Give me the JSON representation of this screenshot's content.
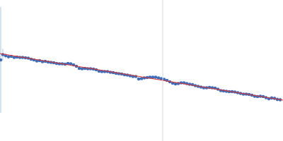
{
  "chart_data": {
    "type": "scatter",
    "tick_labels": false,
    "grid": false,
    "xlim": [
      0,
      400
    ],
    "ylim": [
      0,
      200
    ],
    "xticks": [],
    "yticks": [],
    "reference_lines_x": [
      230
    ],
    "series": [
      {
        "type": "scatter",
        "color": "#3d6cb9",
        "marker": "circle",
        "x": [
          1,
          4,
          8,
          12,
          16,
          20,
          24,
          28,
          32,
          36,
          40,
          44,
          48,
          52,
          56,
          60,
          64,
          68,
          72,
          76,
          80,
          84,
          88,
          92,
          96,
          100,
          104,
          108,
          112,
          116,
          120,
          124,
          128,
          132,
          136,
          140,
          144,
          148,
          152,
          156,
          160,
          164,
          168,
          172,
          176,
          180,
          184,
          188,
          192,
          196,
          200,
          204,
          208,
          212,
          216,
          220,
          224,
          228,
          232,
          236,
          240,
          244,
          248,
          252,
          256,
          260,
          264,
          268,
          272,
          276,
          280,
          284,
          288,
          292,
          296,
          300,
          304,
          308,
          312,
          316,
          320,
          324,
          328,
          332,
          336,
          340,
          344,
          348,
          352,
          356,
          360,
          364,
          368,
          372,
          376,
          380,
          384,
          388,
          392,
          396
        ],
        "values": [
          115,
          122.5,
          121,
          119.5,
          120,
          118.5,
          119,
          118.5,
          118.5,
          118,
          117.5,
          116,
          115,
          113.5,
          114,
          112.5,
          113,
          112,
          111.5,
          111,
          110,
          109.5,
          109.5,
          109,
          110,
          109.5,
          108,
          106,
          103,
          102.5,
          103,
          102.5,
          102.5,
          102,
          101,
          99,
          98.5,
          98.5,
          98.5,
          97.5,
          97,
          96,
          95.5,
          95,
          94,
          93.5,
          92.5,
          91.5,
          91.5,
          88,
          88.5,
          89.5,
          90,
          90.5,
          90.5,
          90.5,
          89.5,
          88.5,
          87.5,
          86,
          84,
          82,
          81,
          81.5,
          82.5,
          82.5,
          81.5,
          80.5,
          80,
          78.5,
          77.5,
          76.5,
          75.5,
          75.5,
          76,
          75.5,
          75,
          73.5,
          71.5,
          71,
          70.5,
          70,
          70,
          69.5,
          68.5,
          67.5,
          66.5,
          66.5,
          66,
          65,
          63.5,
          63,
          63.5,
          63,
          61.5,
          60,
          61,
          60.5,
          59,
          58.5
        ],
        "errors": [
          75,
          8,
          4,
          3,
          2,
          1.5,
          1.5,
          1.5,
          1.5,
          1.5,
          1.5,
          1.5,
          1.5,
          1.5,
          1.5,
          1.5,
          1.5,
          1.5,
          1.5,
          1.5,
          1.5,
          1.5,
          1.5,
          1.5,
          1.5,
          1.5,
          1.5,
          1.5,
          1.5,
          1.5,
          1.5,
          1.5,
          1.5,
          1.5,
          1.5,
          1.5,
          1.5,
          1.5,
          1.5,
          1.5,
          1.5,
          1.5,
          1.5,
          1.5,
          1.5,
          1.5,
          1.5,
          1.5,
          1.5,
          1.5,
          1.5,
          1.5,
          1.5,
          1.5,
          1.5,
          1.5,
          1.5,
          1.5,
          1.5,
          1.5,
          1.5,
          1.5,
          1.5,
          1.5,
          1.5,
          1.5,
          1.5,
          1.5,
          1.5,
          1.5,
          1.5,
          1.5,
          1.5,
          1.5,
          1.5,
          1.5,
          1.5,
          1.5,
          1.5,
          1.5,
          1.5,
          1.5,
          1.5,
          1.5,
          1.5,
          1.5,
          1.5,
          1.5,
          1.5,
          1.5,
          2,
          2,
          2,
          2,
          2.5,
          2.5,
          3,
          3,
          3,
          3
        ]
      },
      {
        "type": "line",
        "color": "#e0312b",
        "line_style": "solid",
        "x": [
          0,
          400
        ],
        "values": [
          124,
          58
        ]
      }
    ]
  }
}
